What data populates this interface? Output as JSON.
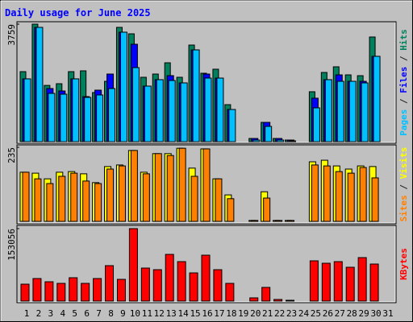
{
  "chart_data": [
    {
      "type": "bar",
      "title": "Daily usage for June 2025",
      "ylim": [
        0,
        3759
      ],
      "yticks": [
        3759
      ],
      "legend_separator": " / ",
      "series": [
        {
          "name": "Hits",
          "color": "#00805c",
          "values": [
            2240,
            3759,
            1800,
            1854,
            2240,
            2266,
            1571,
            1931,
            3656,
            3450,
            2060,
            2163,
            2523,
            2060,
            3090,
            2189,
            2318,
            1184,
            0,
            103,
            618,
            103,
            52,
            0,
            1597,
            2214,
            2395,
            2137,
            2111,
            3348,
            0
          ]
        },
        {
          "name": "Files",
          "color": "#0000ff",
          "values": [
            2009,
            3656,
            1700,
            1622,
            2009,
            1442,
            1648,
            2163,
            3502,
            3116,
            1777,
            1983,
            2112,
            1880,
            2936,
            2163,
            2034,
            1030,
            0,
            103,
            618,
            103,
            52,
            0,
            1391,
            1983,
            2137,
            1931,
            1931,
            2730,
            0
          ]
        },
        {
          "name": "Pages",
          "color": "#00c0ff",
          "values": [
            2009,
            3656,
            1545,
            1519,
            2009,
            1416,
            1494,
            1700,
            3502,
            2369,
            1777,
            1983,
            1957,
            1880,
            2936,
            2034,
            2034,
            1030,
            0,
            52,
            489,
            52,
            26,
            0,
            1082,
            1983,
            1931,
            1931,
            1880,
            2730,
            0
          ]
        }
      ]
    },
    {
      "type": "bar",
      "ylim": [
        0,
        235
      ],
      "yticks": [
        235
      ],
      "legend_separator": " / ",
      "series": [
        {
          "name": "Visits",
          "color": "#ffff00",
          "values": [
            156,
            153,
            135,
            156,
            158,
            151,
            123,
            174,
            179,
            225,
            156,
            215,
            215,
            232,
            169,
            230,
            135,
            84,
            0,
            3,
            94,
            3,
            3,
            0,
            189,
            194,
            176,
            166,
            176,
            174,
            0
          ]
        },
        {
          "name": "Sites",
          "color": "#ff8000",
          "values": [
            156,
            135,
            120,
            143,
            153,
            128,
            120,
            166,
            176,
            225,
            151,
            215,
            209,
            232,
            143,
            230,
            135,
            72,
            0,
            3,
            74,
            3,
            3,
            0,
            179,
            176,
            158,
            153,
            171,
            138,
            0
          ]
        }
      ]
    },
    {
      "type": "bar",
      "ylim": [
        0,
        153056
      ],
      "yticks": [
        153056
      ],
      "categories": [
        "1",
        "2",
        "3",
        "4",
        "5",
        "6",
        "7",
        "8",
        "9",
        "10",
        "11",
        "12",
        "13",
        "14",
        "15",
        "16",
        "17",
        "18",
        "19",
        "20",
        "21",
        "22",
        "23",
        "24",
        "25",
        "26",
        "27",
        "28",
        "29",
        "30",
        "31"
      ],
      "category_colors": [
        "#000000",
        "#000000",
        "#000000",
        "#000000",
        "#000000",
        "#000000",
        "#008040",
        "#008040",
        "#000000",
        "#000000",
        "#000000",
        "#000000",
        "#000000",
        "#008040",
        "#008040",
        "#000000",
        "#000000",
        "#000000",
        "#000000",
        "#000000",
        "#008040",
        "#008040",
        "#000000",
        "#000000",
        "#000000",
        "#000000",
        "#000000",
        "#008040",
        "#008040",
        "#000000",
        "#000000"
      ],
      "series": [
        {
          "name": "KBytes",
          "color": "#ff0000",
          "values": [
            35713,
            47617,
            40814,
            37413,
            49317,
            37413,
            47617,
            74826,
            45916,
            153056,
            69725,
            66323,
            98635,
            83329,
            59521,
            96934,
            66323,
            37413,
            0,
            6802,
            28910,
            3401,
            1701,
            0,
            85030,
            79928,
            83329,
            71425,
            91832,
            78228,
            0
          ]
        }
      ]
    }
  ]
}
